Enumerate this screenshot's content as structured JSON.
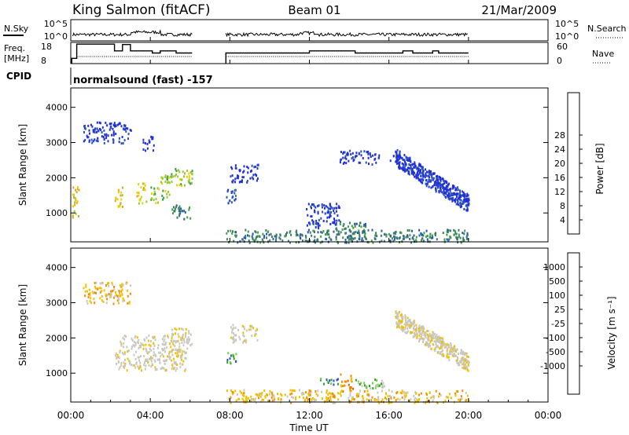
{
  "header": {
    "station": "King Salmon (fitACF)",
    "beam": "Beam 01",
    "date": "21/Mar/2009",
    "mode": "normalsound (fast) -157"
  },
  "strip_labels": {
    "nsky": "N.Sky",
    "nsearch": "N.Search",
    "freq_line1": "Freq.",
    "freq_line2": "[MHz]",
    "nave": "Nave",
    "cpid": "CPID"
  },
  "colors": {
    "power": [
      "#2030d8",
      "#2a55b8",
      "#3d7a6a",
      "#3ca03c",
      "#98c830",
      "#f0d000",
      "#f0a020",
      "#f07010",
      "#e03010",
      "#d80000"
    ],
    "velocity": [
      "#e00000",
      "#f05a00",
      "#f09000",
      "#f0c000",
      "#c8c8c0",
      "#c8c8c0",
      "#70d040",
      "#30a030",
      "#2858b0",
      "#2040c8"
    ],
    "ground_scatter": "#b4b4b4"
  },
  "chart_data": [
    {
      "type": "line",
      "name": "N.Sky / N.Search",
      "left_ticks": [
        "10^5",
        "10^0"
      ],
      "right_ticks": [
        "10^5",
        "10^0"
      ],
      "xlim": [
        0,
        24
      ]
    },
    {
      "type": "line",
      "name": "Freq / Nave",
      "left_ticks": [
        "18",
        "8"
      ],
      "right_ticks": [
        "60",
        "0"
      ],
      "ylim_left": [
        8,
        18
      ],
      "ylim_right": [
        0,
        60
      ],
      "freq_segments": [
        [
          0.05,
          0.3,
          10.5
        ],
        [
          0.3,
          0.75,
          17.2
        ],
        [
          0.75,
          2.2,
          17.2
        ],
        [
          2.2,
          2.6,
          14
        ],
        [
          2.6,
          3.0,
          17
        ],
        [
          3.0,
          3.4,
          14
        ],
        [
          3.4,
          4.1,
          14
        ],
        [
          4.1,
          4.5,
          13
        ],
        [
          4.5,
          5.3,
          14
        ],
        [
          5.3,
          6.1,
          13
        ],
        [
          7.8,
          12.0,
          13
        ],
        [
          12.0,
          14.3,
          14
        ],
        [
          14.3,
          16.7,
          13
        ],
        [
          16.7,
          17.2,
          14
        ],
        [
          17.2,
          18.2,
          13
        ],
        [
          18.2,
          18.5,
          14
        ],
        [
          18.5,
          20.0,
          13
        ]
      ],
      "nave_level": 20
    },
    {
      "type": "heatmap",
      "quantity": "power",
      "ylabel": "Slant Range [km]",
      "ylim": [
        180,
        4550
      ],
      "yticks": [
        1000,
        2000,
        3000,
        4000
      ],
      "xlim": [
        0,
        24
      ],
      "colorbar_label": "Power [dB]",
      "colorbar_ticks": [
        "4",
        "8",
        "12",
        "16",
        "20",
        "24",
        "28"
      ],
      "blobs": [
        {
          "t0": 0.05,
          "t1": 0.4,
          "r0": 900,
          "r1": 1800,
          "c": 5
        },
        {
          "t0": 0.6,
          "t1": 3.0,
          "r0": 3000,
          "r1": 3600,
          "c": 0
        },
        {
          "t0": 2.2,
          "t1": 2.6,
          "r0": 1200,
          "r1": 1800,
          "c": 5
        },
        {
          "t0": 3.3,
          "t1": 3.8,
          "r0": 1300,
          "r1": 1900,
          "c": 5
        },
        {
          "t0": 3.6,
          "t1": 4.2,
          "r0": 2800,
          "r1": 3200,
          "c": 0
        },
        {
          "t0": 4.0,
          "t1": 4.4,
          "r0": 1300,
          "r1": 1800,
          "c": 4
        },
        {
          "t0": 4.5,
          "t1": 5.0,
          "r0": 1400,
          "r1": 2100,
          "c": 4
        },
        {
          "t0": 5.0,
          "t1": 6.1,
          "r0": 1800,
          "r1": 2300,
          "c": 4
        },
        {
          "t0": 5.0,
          "t1": 6.0,
          "r0": 850,
          "r1": 1250,
          "c": 2
        },
        {
          "t0": 7.8,
          "t1": 8.3,
          "r0": 1200,
          "r1": 1700,
          "c": 1
        },
        {
          "t0": 8.0,
          "t1": 9.4,
          "r0": 1900,
          "r1": 2400,
          "c": 0
        },
        {
          "t0": 11.8,
          "t1": 13.5,
          "r0": 600,
          "r1": 1300,
          "c": 0
        },
        {
          "t0": 13.3,
          "t1": 14.8,
          "r0": 250,
          "r1": 800,
          "c": 2
        },
        {
          "t0": 13.5,
          "t1": 15.5,
          "r0": 2400,
          "r1": 2800,
          "c": 0
        },
        {
          "t0": 16.0,
          "t1": 17.0,
          "r0": 2500,
          "r1": 2700,
          "c": 0
        },
        {
          "t0": 7.8,
          "t1": 20.0,
          "r0": 180,
          "r1": 550,
          "c": 2
        }
      ],
      "arc": {
        "t0": 16.3,
        "t1": 20.0,
        "r_start": 2600,
        "r_end": 1300,
        "c": 0
      }
    },
    {
      "type": "heatmap",
      "quantity": "velocity",
      "xlabel": "Time UT",
      "ylabel": "Slant Range [km]",
      "ylim": [
        180,
        4550
      ],
      "yticks": [
        1000,
        2000,
        3000,
        4000
      ],
      "xlim": [
        0,
        24
      ],
      "xticks": [
        "00:00",
        "04:00",
        "08:00",
        "12:00",
        "16:00",
        "20:00",
        "00:00"
      ],
      "colorbar_label": "Velocity [m s⁻¹]",
      "colorbar_ticks": [
        "1000",
        "500",
        "100",
        "25",
        "-25",
        "-100",
        "-500",
        "-1000"
      ],
      "blobs": [
        {
          "t0": 0.6,
          "t1": 3.0,
          "r0": 3000,
          "r1": 3600,
          "c": 3
        },
        {
          "t0": 2.2,
          "t1": 5.9,
          "r0": 1100,
          "r1": 2100,
          "c": 4
        },
        {
          "t0": 5.0,
          "t1": 6.1,
          "r0": 1800,
          "r1": 2300,
          "c": 4
        },
        {
          "t0": 7.8,
          "t1": 8.3,
          "r0": 1300,
          "r1": 1700,
          "c": 7
        },
        {
          "t0": 8.0,
          "t1": 9.4,
          "r0": 1900,
          "r1": 2400,
          "c": 4
        },
        {
          "t0": 12.5,
          "t1": 13.5,
          "r0": 700,
          "r1": 900,
          "c": 7
        },
        {
          "t0": 13.5,
          "t1": 14.2,
          "r0": 500,
          "r1": 1000,
          "c": 2
        },
        {
          "t0": 14.2,
          "t1": 15.8,
          "r0": 600,
          "r1": 850,
          "c": 6
        },
        {
          "t0": 7.8,
          "t1": 20.0,
          "r0": 180,
          "r1": 550,
          "c": 3
        }
      ],
      "arc": {
        "t0": 16.3,
        "t1": 20.0,
        "r_start": 2600,
        "r_end": 1300,
        "c": 4
      }
    }
  ]
}
